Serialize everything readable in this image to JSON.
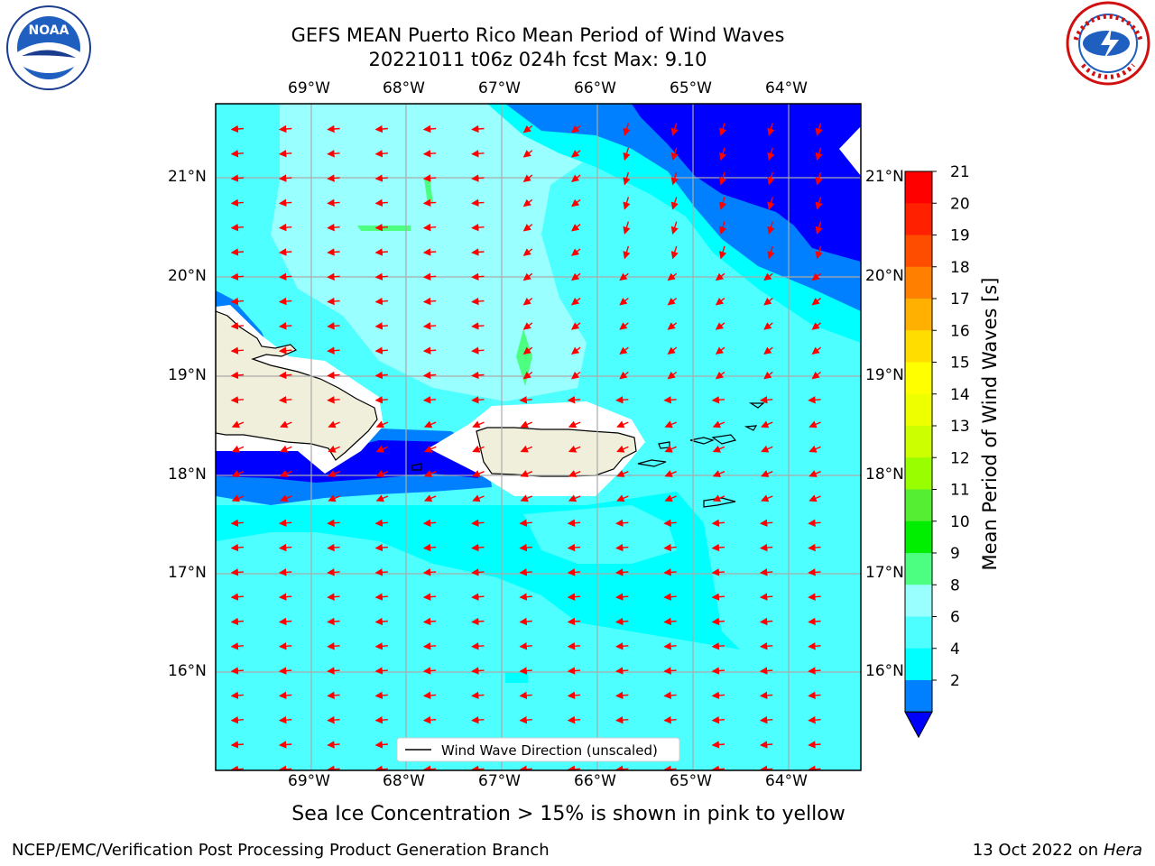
{
  "title": {
    "line1": "GEFS MEAN Puerto Rico Mean Period of Wind Waves",
    "line2": "20221011 t06z 024h fcst   Max: 9.10"
  },
  "map": {
    "lon_labels": [
      "69°W",
      "68°W",
      "67°W",
      "66°W",
      "65°W",
      "64°W"
    ],
    "lat_labels": [
      "21°N",
      "20°N",
      "19°N",
      "18°N",
      "17°N",
      "16°N"
    ],
    "legend": "Wind Wave Direction (unscaled)",
    "arrow_direction": "toward west-southwest (easterly trade wind waves)",
    "colors": {
      "ocean_4_6": "#00ffff",
      "ocean_6_8": "#4dffff",
      "ocean_8_9": "#99ffff",
      "deep_2_4": "#0080ff",
      "deep_lt_2": "#0000ff",
      "band_9_10": "#4dff80",
      "land": "#efefdc",
      "arrow": "#ff0000"
    }
  },
  "colorbar": {
    "title": "Mean Period of Wind Waves [s]",
    "ticks": [
      "21",
      "20",
      "19",
      "18",
      "17",
      "16",
      "15",
      "14",
      "13",
      "12",
      "11",
      "10",
      "9",
      "8",
      "6",
      "4",
      "2"
    ],
    "colors_top_to_bottom": [
      "#ff0000",
      "#ff2000",
      "#ff4d00",
      "#ff8000",
      "#ffb000",
      "#ffdd00",
      "#ffff00",
      "#eeff00",
      "#ccff00",
      "#99ff00",
      "#55ee33",
      "#00ee00",
      "#4dff80",
      "#99ffff",
      "#4dffff",
      "#00ffff",
      "#0080ff"
    ],
    "extend_color": "#0000ff"
  },
  "note": "Sea Ice Concentration > 15% is shown in pink to yellow",
  "footer": {
    "left": "NCEP/EMC/Verification Post Processing Product Generation Branch",
    "right_prefix": "13 Oct 2022 on ",
    "right_host": "Hera"
  },
  "logos": {
    "left": "noaa-logo",
    "right": "national-weather-service-logo",
    "noaa_text": "NOAA",
    "nws_text": "NATIONAL WEATHER SERVICE"
  }
}
